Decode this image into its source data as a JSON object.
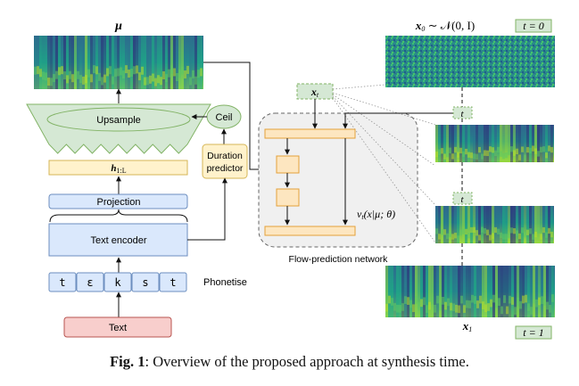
{
  "labels": {
    "mu": "μ",
    "upsample": "Upsample",
    "ceil": "Ceil",
    "h": "h",
    "h_sub": "1:L",
    "duration_line1": "Duration",
    "duration_line2": "predictor",
    "projection": "Projection",
    "text_encoder": "Text encoder",
    "phonemes": [
      "t",
      "ε",
      "k",
      "s",
      "t"
    ],
    "phonetise": "Phonetise",
    "text": "Text",
    "x0": "x",
    "x0_sub": "0",
    "x0_dist": " ∼ 𝒩(0, I)",
    "t0": "t = 0",
    "xt": "x",
    "xt_sub": "t",
    "t_small_a": "t",
    "t_small_b": "t",
    "vt": "v",
    "vt_sub": "t",
    "vt_args": "(x|μ; θ)",
    "flow_network": "Flow-prediction network",
    "x1": "x",
    "x1_sub": "1",
    "t1": "t = 1"
  },
  "caption": {
    "bold": "Fig. 1",
    "rest": ": Overview of the proposed approach at synthesis time."
  },
  "colors": {
    "orange_fill": "#fde6c0",
    "orange_stroke": "#e4a13a",
    "green_fill": "#d5e8d4",
    "green_stroke": "#82b366",
    "blue_fill": "#dae8fc",
    "blue_stroke": "#6c8ebf",
    "red_fill": "#f8cecc",
    "red_stroke": "#b85450",
    "cream_fill": "#fff2cc",
    "cream_stroke": "#d6b656",
    "gray_fill": "#f0f0f0"
  }
}
